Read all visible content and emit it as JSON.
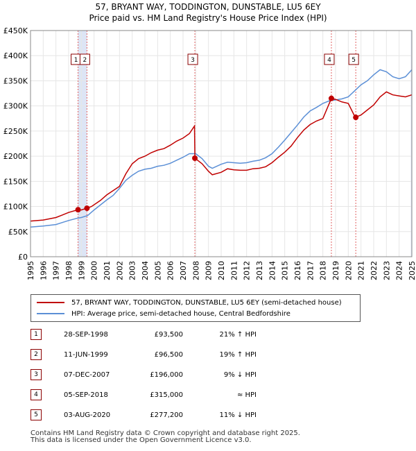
{
  "title_line1": "57, BRYANT WAY, TODDINGTON, DUNSTABLE, LU5 6EY",
  "title_line2": "Price paid vs. HM Land Registry's House Price Index (HPI)",
  "colors": {
    "price": "#c00000",
    "hpi": "#5b8fd6",
    "band": "#dde5f5",
    "vline": "#e06060",
    "grid": "#e6e6e6"
  },
  "chart_data": {
    "type": "line",
    "xlim": [
      1995,
      2025
    ],
    "ylim": [
      0,
      450000
    ],
    "ytick_values": [
      0,
      50000,
      100000,
      150000,
      200000,
      250000,
      300000,
      350000,
      400000,
      450000
    ],
    "ytick_labels": [
      "£0",
      "£50K",
      "£100K",
      "£150K",
      "£200K",
      "£250K",
      "£300K",
      "£350K",
      "£400K",
      "£450K"
    ],
    "xtick_values": [
      1995,
      1996,
      1997,
      1998,
      1999,
      2000,
      2001,
      2002,
      2003,
      2004,
      2005,
      2006,
      2007,
      2008,
      2009,
      2010,
      2011,
      2012,
      2013,
      2014,
      2015,
      2016,
      2017,
      2018,
      2019,
      2020,
      2021,
      2022,
      2023,
      2024,
      2025
    ],
    "xtick_labels": [
      "1995",
      "1996",
      "1997",
      "1998",
      "1999",
      "2000",
      "2001",
      "2002",
      "2003",
      "2004",
      "2005",
      "2006",
      "2007",
      "2008",
      "2009",
      "2010",
      "2011",
      "2012",
      "2013",
      "2014",
      "2015",
      "2016",
      "2017",
      "2018",
      "2019",
      "2020",
      "2021",
      "2022",
      "2023",
      "2024",
      "2025"
    ],
    "series": [
      {
        "name": "57, BRYANT WAY, TODDINGTON, DUNSTABLE, LU5 6EY (semi-detached house)",
        "x": [
          1995.0,
          1996.0,
          1997.0,
          1997.5,
          1998.0,
          1998.74,
          1999.0,
          1999.44,
          1999.8,
          2000.5,
          2001.0,
          2002.0,
          2002.5,
          2003.0,
          2003.5,
          2004.0,
          2004.5,
          2005.0,
          2005.5,
          2006.0,
          2006.5,
          2007.0,
          2007.5,
          2007.9,
          2007.93,
          2008.5,
          2009.0,
          2009.3,
          2010.0,
          2010.5,
          2011.0,
          2011.5,
          2012.0,
          2012.5,
          2013.0,
          2013.5,
          2014.0,
          2014.5,
          2015.0,
          2015.5,
          2016.0,
          2016.5,
          2017.0,
          2017.5,
          2018.0,
          2018.67,
          2019.0,
          2019.5,
          2020.0,
          2020.55,
          2021.0,
          2021.5,
          2022.0,
          2022.5,
          2023.0,
          2023.5,
          2024.0,
          2024.5,
          2025.0
        ],
        "y": [
          71000,
          73000,
          78000,
          83000,
          88000,
          93500,
          93000,
          96500,
          100000,
          112000,
          123000,
          140000,
          165000,
          185000,
          195000,
          200000,
          207000,
          212000,
          215000,
          222000,
          230000,
          236000,
          245000,
          260000,
          196000,
          185000,
          170000,
          163000,
          168000,
          175000,
          173000,
          172000,
          172000,
          175000,
          176000,
          179000,
          187000,
          198000,
          208000,
          220000,
          237000,
          252000,
          263000,
          270000,
          275000,
          315000,
          313000,
          308000,
          305000,
          277200,
          282000,
          292000,
          302000,
          318000,
          328000,
          322000,
          320000,
          318000,
          322000
        ]
      },
      {
        "name": "HPI: Average price, semi-detached house, Central Bedfordshire",
        "x": [
          1995.0,
          1996.0,
          1997.0,
          1997.5,
          1998.0,
          1998.74,
          1999.0,
          1999.5,
          2000.0,
          2000.5,
          2001.0,
          2001.5,
          2002.0,
          2002.5,
          2003.0,
          2003.5,
          2004.0,
          2004.5,
          2005.0,
          2005.5,
          2006.0,
          2006.5,
          2007.0,
          2007.5,
          2008.0,
          2008.5,
          2009.0,
          2009.3,
          2010.0,
          2010.5,
          2011.0,
          2011.5,
          2012.0,
          2012.5,
          2013.0,
          2013.5,
          2014.0,
          2014.5,
          2015.0,
          2015.5,
          2016.0,
          2016.5,
          2017.0,
          2017.5,
          2018.0,
          2018.5,
          2019.0,
          2019.5,
          2020.0,
          2020.5,
          2021.0,
          2021.5,
          2022.0,
          2022.5,
          2023.0,
          2023.5,
          2024.0,
          2024.5,
          2025.0
        ],
        "y": [
          59000,
          61000,
          64000,
          68000,
          72000,
          77000,
          78000,
          82000,
          93000,
          103000,
          113000,
          122000,
          136000,
          152000,
          162000,
          170000,
          174000,
          176000,
          180000,
          182000,
          186000,
          192000,
          198000,
          205000,
          205000,
          195000,
          180000,
          176000,
          184000,
          188000,
          187000,
          186000,
          187000,
          190000,
          192000,
          197000,
          205000,
          218000,
          232000,
          247000,
          262000,
          278000,
          290000,
          297000,
          305000,
          310000,
          312000,
          314000,
          318000,
          330000,
          342000,
          350000,
          362000,
          372000,
          368000,
          358000,
          354000,
          358000,
          372000
        ]
      }
    ],
    "sales": [
      {
        "id": "1",
        "x": 1998.74,
        "price": 93500
      },
      {
        "id": "2",
        "x": 1999.44,
        "price": 96500
      },
      {
        "id": "3",
        "x": 2007.93,
        "price": 196000
      },
      {
        "id": "4",
        "x": 2018.67,
        "price": 315000
      },
      {
        "id": "5",
        "x": 2020.59,
        "price": 277200
      }
    ],
    "annotations": [
      {
        "label": "1",
        "x": 1998.74
      },
      {
        "label": "2",
        "x": 1999.44
      },
      {
        "label": "3",
        "x": 2007.93
      },
      {
        "label": "4",
        "x": 2018.67
      },
      {
        "label": "5",
        "x": 2020.59
      }
    ],
    "shaded_ranges": [
      [
        1998.74,
        1999.44
      ],
      [
        2024.92,
        2025.0
      ]
    ]
  },
  "legend": {
    "price_label": "57, BRYANT WAY, TODDINGTON, DUNSTABLE, LU5 6EY (semi-detached house)",
    "hpi_label": "HPI: Average price, semi-detached house, Central Bedfordshire"
  },
  "sales_table": [
    {
      "num": "1",
      "date": "28-SEP-1998",
      "price": "£93,500",
      "hpi": "21% ↑ HPI"
    },
    {
      "num": "2",
      "date": "11-JUN-1999",
      "price": "£96,500",
      "hpi": "19% ↑ HPI"
    },
    {
      "num": "3",
      "date": "07-DEC-2007",
      "price": "£196,000",
      "hpi": "9% ↓ HPI"
    },
    {
      "num": "4",
      "date": "05-SEP-2018",
      "price": "£315,000",
      "hpi": "≈ HPI"
    },
    {
      "num": "5",
      "date": "03-AUG-2020",
      "price": "£277,200",
      "hpi": "11% ↓ HPI"
    }
  ],
  "footer": {
    "line1": "Contains HM Land Registry data © Crown copyright and database right 2025.",
    "line2": "This data is licensed under the Open Government Licence v3.0."
  }
}
